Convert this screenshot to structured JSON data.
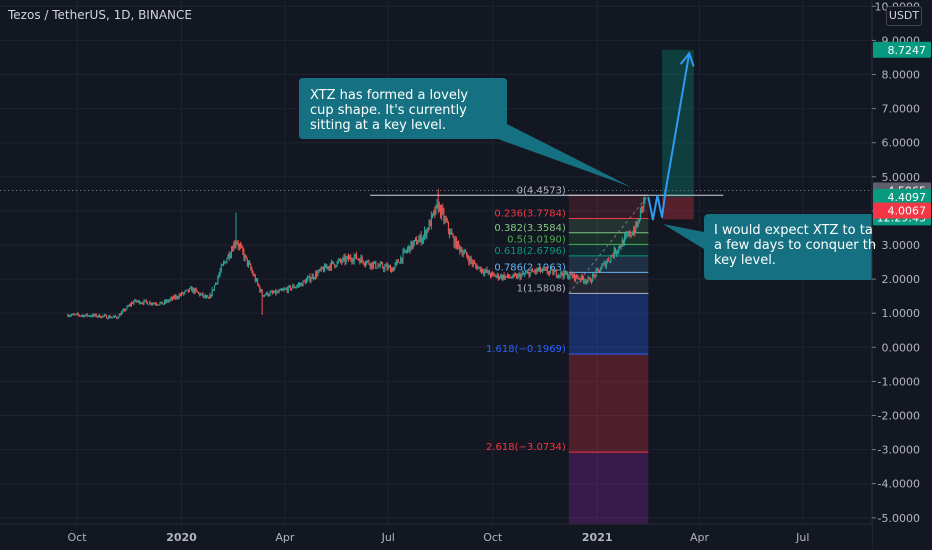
{
  "header": {
    "title": "Tezos / TetherUS, 1D, BINANCE",
    "currency_button": "USDT"
  },
  "annotations": {
    "callout_1": "XTZ has formed a lovely\ncup shape. It's currently\nsitting at a key level.",
    "callout_2": "I would expect XTZ to ta\na few days to conquer th\nkey level."
  },
  "colors": {
    "background": "#131722",
    "up": "#26a69a",
    "down": "#ef5350",
    "callout": "#167a8a",
    "arrow": "#2e9bf2"
  },
  "chart_data": {
    "type": "candlestick",
    "title": "Tezos / TetherUS, 1D, BINANCE",
    "x_axis": {
      "tick_labels": [
        "Oct",
        "2020",
        "Apr",
        "Jul",
        "Oct",
        "2021",
        "Apr",
        "Jul"
      ],
      "tick_dates": [
        "2019-10-01",
        "2020-01-01",
        "2020-04-01",
        "2020-07-01",
        "2020-10-01",
        "2021-01-01",
        "2021-04-01",
        "2021-07-01"
      ],
      "range": [
        "2019-09-12",
        "2021-08-12"
      ]
    },
    "y_axis": {
      "tick_labels": [
        "-5.0000",
        "-4.0000",
        "-3.0000",
        "-2.0000",
        "-1.0000",
        "0.0000",
        "1.0000",
        "2.0000",
        "3.0000",
        "4.0000",
        "5.0000",
        "6.0000",
        "7.0000",
        "8.0000",
        "9.0000",
        "10.0000"
      ],
      "range": [
        -5.2,
        10.3
      ],
      "position": "right"
    },
    "price_path": [
      [
        "2019-09-23",
        0.95
      ],
      [
        "2019-10-15",
        0.93
      ],
      [
        "2019-11-05",
        0.88
      ],
      [
        "2019-11-20",
        1.35
      ],
      [
        "2019-12-15",
        1.28
      ],
      [
        "2020-01-10",
        1.7
      ],
      [
        "2020-01-25",
        1.4
      ],
      [
        "2020-02-05",
        2.3
      ],
      [
        "2020-02-18",
        3.15
      ],
      [
        "2020-03-01",
        2.35
      ],
      [
        "2020-03-12",
        1.55
      ],
      [
        "2020-03-25",
        1.6
      ],
      [
        "2020-04-15",
        1.85
      ],
      [
        "2020-05-10",
        2.4
      ],
      [
        "2020-06-01",
        2.65
      ],
      [
        "2020-06-20",
        2.4
      ],
      [
        "2020-07-05",
        2.3
      ],
      [
        "2020-07-20",
        2.95
      ],
      [
        "2020-08-01",
        3.25
      ],
      [
        "2020-08-14",
        4.15
      ],
      [
        "2020-08-28",
        3.1
      ],
      [
        "2020-09-15",
        2.4
      ],
      [
        "2020-10-01",
        2.1
      ],
      [
        "2020-10-20",
        2.05
      ],
      [
        "2020-11-10",
        2.25
      ],
      [
        "2020-12-01",
        2.15
      ],
      [
        "2020-12-15",
        2.05
      ],
      [
        "2020-12-25",
        1.95
      ],
      [
        "2021-01-05",
        2.35
      ],
      [
        "2021-01-20",
        2.95
      ],
      [
        "2021-02-05",
        3.55
      ],
      [
        "2021-02-12",
        4.41
      ]
    ],
    "candle_markers": [
      {
        "label": "spike-high",
        "date": "2020-02-18",
        "high": 3.95
      },
      {
        "label": "spike-low",
        "date": "2020-03-12",
        "low": 0.95
      },
      {
        "label": "peak",
        "date": "2020-08-14",
        "high": 4.65
      }
    ],
    "horizontal_line": {
      "label": "resistance",
      "price": 4.4573,
      "from": "2020-06-15",
      "to": "2021-04-22"
    },
    "fibonacci": {
      "from_date": "2020-12-07",
      "to_date": "2021-02-15",
      "levels": [
        {
          "ratio": "0",
          "price": 4.4573,
          "label": "0(4.4573)",
          "color": "#b2b5be"
        },
        {
          "ratio": "0.236",
          "price": 3.7784,
          "label": "0.236(3.7784)",
          "color": "#f23645"
        },
        {
          "ratio": "0.382",
          "price": 3.3584,
          "label": "0.382(3.3584)",
          "color": "#81c784"
        },
        {
          "ratio": "0.5",
          "price": 3.019,
          "label": "0.5(3.0190)",
          "color": "#4caf50"
        },
        {
          "ratio": "0.618",
          "price": 2.6796,
          "label": "0.618(2.6796)",
          "color": "#089981"
        },
        {
          "ratio": "0.786",
          "price": 2.1963,
          "label": "0.786(2.1963)",
          "color": "#64b5f6"
        },
        {
          "ratio": "1",
          "price": 1.5808,
          "label": "1(1.5808)",
          "color": "#b2b5be"
        },
        {
          "ratio": "1.618",
          "price": -0.1969,
          "label": "1.618(−0.1969)",
          "color": "#2962ff"
        },
        {
          "ratio": "2.618",
          "price": -3.0734,
          "label": "2.618(−3.0734)",
          "color": "#f23645"
        }
      ]
    },
    "long_position": {
      "from_date": "2021-02-27",
      "to_date": "2021-03-27",
      "entry": 4.4097,
      "target": 8.7247,
      "stop": 3.75
    },
    "projection_path": [
      [
        "2021-02-15",
        4.41
      ],
      [
        "2021-02-19",
        3.75
      ],
      [
        "2021-02-23",
        4.45
      ],
      [
        "2021-02-27",
        3.82
      ],
      [
        "2021-03-02",
        4.55
      ],
      [
        "2021-03-23",
        8.62
      ]
    ],
    "price_labels": [
      {
        "text": "8.7247",
        "price": 8.7247,
        "color": "#089981"
      },
      {
        "text": "4.5965",
        "price": 4.5965,
        "color": "#5d606b"
      },
      {
        "text": "4.4097",
        "price": 4.4097,
        "color": "#089981"
      },
      {
        "text": "12:29:43",
        "price": 3.81,
        "color": "#089981"
      },
      {
        "text": "4.0067",
        "price": 4.0067,
        "color": "#f23645"
      }
    ],
    "current_price_dotted": 4.5965,
    "grid": true,
    "legend": "none"
  }
}
